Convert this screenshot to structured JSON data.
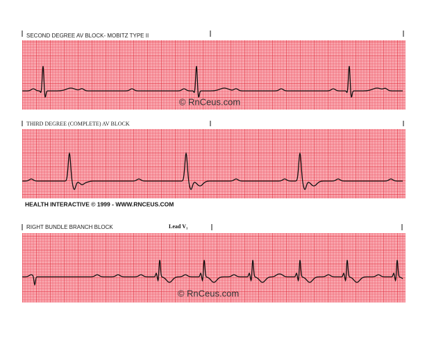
{
  "strips": [
    {
      "title": "SECOND DEGREE AV BLOCK- MOBITZ TYPE II",
      "watermark": "© RnCeus.com"
    },
    {
      "title": "THIRD DEGREE (COMPLETE) AV BLOCK"
    },
    {
      "title": "RIGHT BUNDLE BRANCH BLOCK",
      "lead": "Lead V₁",
      "watermark": "© RnCeus.com"
    }
  ],
  "footer": "HEALTH INTERACTIVE © 1999 - WWW.RNCEUS.COM"
}
